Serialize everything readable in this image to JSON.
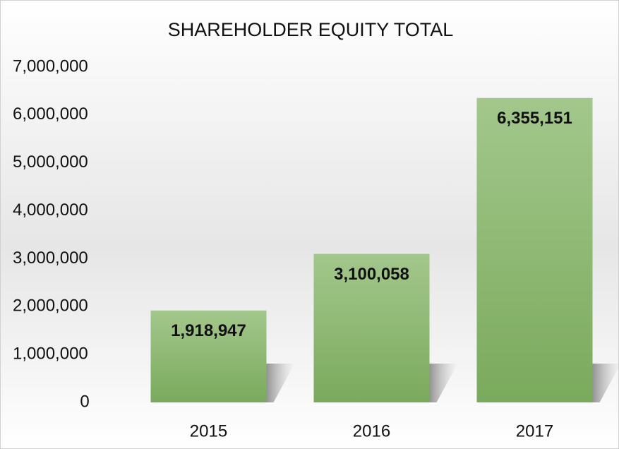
{
  "chart_data": {
    "type": "bar",
    "title": "SHAREHOLDER EQUITY TOTAL",
    "categories": [
      "2015",
      "2016",
      "2017"
    ],
    "values": [
      1918947,
      3100058,
      6355151
    ],
    "value_labels": [
      "1,918,947",
      "3,100,058",
      "6,355,151"
    ],
    "color": "#8cba72",
    "ylim": [
      0,
      7000000
    ],
    "yticks": [
      0,
      {
        "value": 1000000,
        "label": "1,000,000"
      },
      {
        "value": 2000000,
        "label": "2,000,000"
      },
      {
        "value": 3000000,
        "label": "3,000,000"
      },
      {
        "value": 4000000,
        "label": "4,000,000"
      },
      {
        "value": 5000000,
        "label": "5,000,000"
      },
      {
        "value": 6000000,
        "label": "6,000,000"
      },
      {
        "value": 7000000,
        "label": "7,000,000"
      }
    ],
    "grid": false
  }
}
